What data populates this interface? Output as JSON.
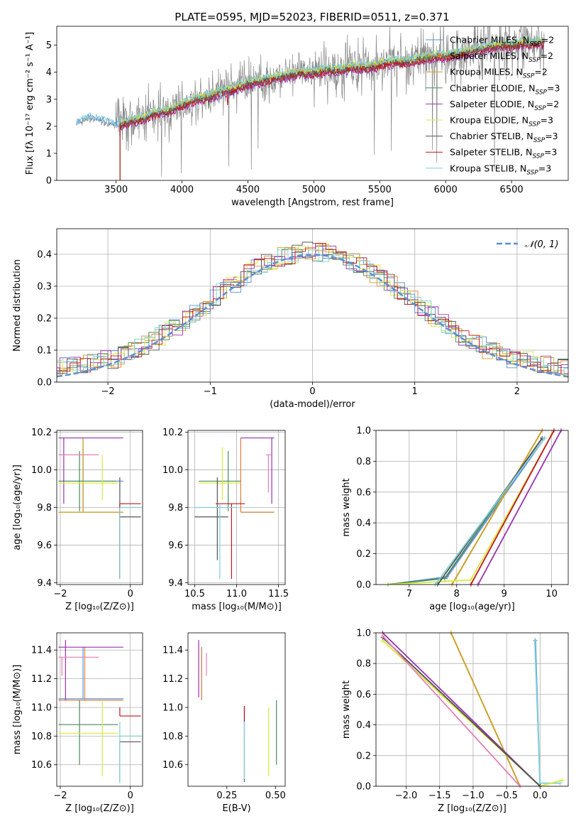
{
  "title": "PLATE=0595, MJD=52023, FIBERID=0511, z=0.371",
  "models": [
    {
      "name": "Chabrier MILES",
      "nssp": "2",
      "color": "#5b8fd6"
    },
    {
      "name": "Salpeter MILES",
      "nssp": "2",
      "color": "#e3853d"
    },
    {
      "name": "Kroupa MILES",
      "nssp": "2",
      "color": "#c9a227"
    },
    {
      "name": "Chabrier ELODIE",
      "nssp": "3",
      "color": "#4a8a5c"
    },
    {
      "name": "Salpeter ELODIE",
      "nssp": "2",
      "color": "#9b30b0"
    },
    {
      "name": "Kroupa ELODIE",
      "nssp": "3",
      "color": "#d8ea3c"
    },
    {
      "name": "Chabrier STELIB",
      "nssp": "3",
      "color": "#555555"
    },
    {
      "name": "Salpeter STELIB",
      "nssp": "3",
      "color": "#c0141c"
    },
    {
      "name": "Kroupa STELIB",
      "nssp": "3",
      "color": "#7fd0d8"
    }
  ],
  "chart_data": [
    {
      "id": "spectrum",
      "type": "line",
      "xlabel": "wavelength [Angstrom, rest frame]",
      "ylabel": "Flux [fλ 10⁻¹⁷ erg cm⁻² s⁻¹ A⁻¹]",
      "xlim": [
        3050,
        6930
      ],
      "ylim": [
        0,
        5.7
      ],
      "xticks": [
        3500,
        4000,
        4500,
        5000,
        5500,
        6000,
        6500
      ],
      "yticks": [
        0,
        1,
        2,
        3,
        4,
        5
      ],
      "data_color": "#888888",
      "data_continuum": [
        [
          3200,
          2.1
        ],
        [
          3300,
          2.3
        ],
        [
          3400,
          2.2
        ],
        [
          3500,
          2.0
        ],
        [
          3600,
          2.2
        ],
        [
          3700,
          2.3
        ],
        [
          3800,
          2.5
        ],
        [
          3900,
          2.6
        ],
        [
          4000,
          2.8
        ],
        [
          4100,
          3.0
        ],
        [
          4200,
          3.1
        ],
        [
          4300,
          3.3
        ],
        [
          4400,
          3.4
        ],
        [
          4500,
          3.6
        ],
        [
          4600,
          3.7
        ],
        [
          4700,
          3.8
        ],
        [
          4800,
          3.9
        ],
        [
          4900,
          4.0
        ],
        [
          5000,
          4.0
        ],
        [
          5100,
          4.1
        ],
        [
          5200,
          4.1
        ],
        [
          5300,
          4.2
        ],
        [
          5400,
          4.2
        ],
        [
          5500,
          4.3
        ],
        [
          5600,
          4.4
        ],
        [
          5700,
          4.4
        ],
        [
          5800,
          4.5
        ],
        [
          5900,
          4.6
        ],
        [
          6000,
          4.6
        ],
        [
          6100,
          4.7
        ],
        [
          6200,
          4.8
        ],
        [
          6300,
          4.9
        ],
        [
          6400,
          5.0
        ],
        [
          6500,
          5.0
        ],
        [
          6600,
          5.1
        ],
        [
          6700,
          5.1
        ],
        [
          6750,
          5.1
        ]
      ],
      "model_offsets": [
        0.05,
        0.0,
        0.02,
        -0.05,
        -0.15,
        0.08,
        -0.03,
        -0.1,
        0.1
      ]
    },
    {
      "id": "residuals",
      "type": "histogram",
      "xlabel": "(data-model)/error",
      "ylabel": "Normed distribution",
      "xlim": [
        -2.5,
        2.5
      ],
      "ylim": [
        0,
        0.48
      ],
      "xticks": [
        -2,
        -1,
        0,
        1,
        2
      ],
      "yticks": [
        0.0,
        0.1,
        0.2,
        0.3,
        0.4
      ],
      "legend": "𝒩(0, 1)",
      "reference_color": "#5b8fd6",
      "reference": "normal(0,1)"
    },
    {
      "id": "age_vs_Z",
      "type": "errorbar",
      "xlabel": "Z [log₁₀(Z/Z⊙)]",
      "ylabel": "age  [log₁₀(age/yr)]",
      "xlim": [
        -2.1,
        0.35
      ],
      "ylim": [
        9.39,
        10.21
      ],
      "xticks": [
        -2,
        0
      ],
      "yticks": [
        9.4,
        9.6,
        9.8,
        10.0,
        10.2
      ],
      "points": [
        {
          "m": 0,
          "x": -1.35,
          "y": 9.94,
          "xe": [
            -2.05,
            -0.2
          ],
          "ye": [
            9.78,
            10.12
          ]
        },
        {
          "m": 1,
          "x": -1.35,
          "y": 9.775,
          "xe": [
            -2.05,
            -0.2
          ],
          "ye": [
            9.775,
            10.17
          ]
        },
        {
          "m": 2,
          "x": -1.35,
          "y": 9.775,
          "xe": [
            -2.05,
            -0.2
          ],
          "ye": [
            9.775,
            10.17
          ]
        },
        {
          "m": 3,
          "x": -1.45,
          "y": 9.94,
          "xe": [
            -2.05,
            -0.4
          ],
          "ye": [
            9.78,
            10.1
          ]
        },
        {
          "m": 4,
          "x": -1.9,
          "y": 10.17,
          "xe": [
            -2.05,
            -0.2
          ],
          "ye": [
            9.82,
            10.17
          ]
        },
        {
          "m": 5,
          "x": -0.8,
          "y": 9.93,
          "xe": [
            -2.05,
            -0.35
          ],
          "ye": [
            9.84,
            10.08
          ]
        },
        {
          "m": 6,
          "x": -0.3,
          "y": 9.75,
          "xe": [
            -0.3,
            0.3
          ],
          "ye": [
            9.42,
            9.96
          ]
        },
        {
          "m": 7,
          "x": -0.3,
          "y": 9.82,
          "xe": [
            -0.3,
            0.3
          ],
          "ye": [
            9.42,
            9.82
          ]
        },
        {
          "m": 8,
          "x": -0.3,
          "y": 9.8,
          "xe": [
            -0.3,
            0.3
          ],
          "ye": [
            9.42,
            9.8
          ]
        },
        {
          "m": 4,
          "x": -1.9,
          "y": 10.08,
          "xe": [
            -2.05,
            -0.9
          ],
          "ye": [
            10.08,
            10.08
          ],
          "c": "#e67fb4"
        }
      ]
    },
    {
      "id": "age_vs_mass",
      "type": "errorbar",
      "xlabel": "mass [log₁₀(M/M⊙)]",
      "ylabel": "",
      "xlim": [
        10.42,
        11.58
      ],
      "ylim": [
        9.39,
        10.21
      ],
      "xticks": [
        10.5,
        11.0,
        11.5
      ],
      "yticks": [
        9.4,
        9.6,
        9.8,
        10.0,
        10.2
      ],
      "points": [
        {
          "m": 0,
          "x": 11.05,
          "y": 9.775,
          "xe": [
            11.05,
            11.45
          ],
          "ye": [
            9.775,
            10.17
          ]
        },
        {
          "m": 1,
          "x": 11.05,
          "y": 9.775,
          "xe": [
            11.05,
            11.45
          ],
          "ye": [
            9.775,
            10.17
          ]
        },
        {
          "m": 3,
          "x": 10.9,
          "y": 9.94,
          "xe": [
            10.55,
            11.05
          ],
          "ye": [
            9.78,
            10.1
          ]
        },
        {
          "m": 4,
          "x": 11.42,
          "y": 10.17,
          "xe": [
            11.05,
            11.45
          ],
          "ye": [
            9.82,
            10.17
          ]
        },
        {
          "m": 5,
          "x": 10.83,
          "y": 9.93,
          "xe": [
            10.55,
            11.05
          ],
          "ye": [
            9.84,
            10.12
          ]
        },
        {
          "m": 6,
          "x": 10.77,
          "y": 9.75,
          "xe": [
            10.5,
            10.9
          ],
          "ye": [
            9.52,
            9.96
          ]
        },
        {
          "m": 7,
          "x": 10.94,
          "y": 9.82,
          "xe": [
            10.75,
            11.1
          ],
          "ye": [
            9.42,
            9.82
          ]
        },
        {
          "m": 8,
          "x": 10.8,
          "y": 9.8,
          "xe": [
            10.5,
            11.0
          ],
          "ye": [
            9.42,
            9.82
          ]
        },
        {
          "m": 4,
          "x": 11.38,
          "y": 10.08,
          "xe": [
            11.35,
            11.42
          ],
          "ye": [
            9.88,
            10.08
          ],
          "c": "#e67fb4"
        }
      ]
    },
    {
      "id": "massweight_vs_age",
      "type": "line",
      "xlabel": "age  [log₁₀(age/yr)]",
      "ylabel": "mass weight",
      "xlim": [
        6.3,
        10.35
      ],
      "ylim": [
        0,
        1
      ],
      "xticks": [
        7,
        8,
        9,
        10
      ],
      "yticks": [
        0.0,
        0.2,
        0.4,
        0.6,
        0.8,
        1.0
      ],
      "series": [
        {
          "m": 0,
          "x": [
            6.55,
            7.8,
            9.85
          ],
          "y": [
            0.0,
            0.05,
            0.95
          ]
        },
        {
          "m": 1,
          "x": [
            7.9,
            9.8
          ],
          "y": [
            0.0,
            1.0
          ]
        },
        {
          "m": 2,
          "x": [
            7.9,
            9.8
          ],
          "y": [
            0.0,
            1.0
          ]
        },
        {
          "m": 3,
          "x": [
            6.55,
            7.75,
            9.8
          ],
          "y": [
            0.0,
            0.04,
            0.95
          ]
        },
        {
          "m": 4,
          "x": [
            8.45,
            10.2
          ],
          "y": [
            0.0,
            1.0
          ]
        },
        {
          "m": 5,
          "x": [
            6.55,
            8.3,
            10.0
          ],
          "y": [
            0.0,
            0.03,
            0.97
          ]
        },
        {
          "m": 6,
          "x": [
            7.6,
            9.8
          ],
          "y": [
            0.0,
            0.95
          ]
        },
        {
          "m": 7,
          "x": [
            8.3,
            10.05
          ],
          "y": [
            0.0,
            1.0
          ]
        },
        {
          "m": 8,
          "x": [
            7.55,
            9.85
          ],
          "y": [
            0.0,
            0.95
          ]
        }
      ]
    },
    {
      "id": "mass_vs_Z",
      "type": "errorbar",
      "xlabel": "Z [log₁₀(Z/Z⊙)]",
      "ylabel": "mass [log₁₀(M/M⊙)]",
      "xlim": [
        -2.1,
        0.35
      ],
      "ylim": [
        10.45,
        11.52
      ],
      "xticks": [
        -2,
        0
      ],
      "yticks": [
        10.6,
        10.8,
        11.0,
        11.2,
        11.4
      ],
      "points": [
        {
          "m": 0,
          "x": -1.35,
          "y": 11.06,
          "xe": [
            -2.05,
            -0.2
          ],
          "ye": [
            11.06,
            11.42
          ]
        },
        {
          "m": 1,
          "x": -1.3,
          "y": 11.05,
          "xe": [
            -2.05,
            -0.2
          ],
          "ye": [
            11.05,
            11.42
          ]
        },
        {
          "m": 3,
          "x": -1.45,
          "y": 10.88,
          "xe": [
            -2.05,
            -0.35
          ],
          "ye": [
            10.6,
            11.05
          ]
        },
        {
          "m": 4,
          "x": -1.85,
          "y": 11.42,
          "xe": [
            -2.05,
            -0.2
          ],
          "ye": [
            11.05,
            11.47
          ]
        },
        {
          "m": 5,
          "x": -0.8,
          "y": 10.82,
          "xe": [
            -2.05,
            -0.35
          ],
          "ye": [
            10.52,
            11.05
          ]
        },
        {
          "m": 6,
          "x": -0.3,
          "y": 10.76,
          "xe": [
            -0.3,
            0.3
          ],
          "ye": [
            10.48,
            10.76
          ]
        },
        {
          "m": 7,
          "x": -0.3,
          "y": 10.94,
          "xe": [
            -0.3,
            0.3
          ],
          "ye": [
            10.94,
            11.0
          ]
        },
        {
          "m": 8,
          "x": -0.3,
          "y": 10.8,
          "xe": [
            -0.3,
            0.3
          ],
          "ye": [
            10.47,
            10.9
          ]
        },
        {
          "m": 4,
          "x": -1.95,
          "y": 11.35,
          "xe": [
            -2.05,
            -0.9
          ],
          "ye": [
            11.22,
            11.35
          ],
          "c": "#e67fb4"
        }
      ]
    },
    {
      "id": "mass_vs_EBV",
      "type": "errorbar",
      "xlabel": "E(B-V)",
      "ylabel": "",
      "xlim": [
        0.05,
        0.55
      ],
      "ylim": [
        10.45,
        11.52
      ],
      "xticks": [
        0.25,
        0.5
      ],
      "yticks": [
        10.6,
        10.8,
        11.0,
        11.2,
        11.4
      ],
      "points": [
        {
          "m": 0,
          "x": 0.12,
          "y": 11.3,
          "xe": [
            0.12,
            0.12
          ],
          "ye": [
            11.05,
            11.42
          ]
        },
        {
          "m": 1,
          "x": 0.12,
          "y": 11.3,
          "xe": [
            0.12,
            0.12
          ],
          "ye": [
            11.05,
            11.42
          ]
        },
        {
          "m": 4,
          "x": 0.105,
          "y": 11.3,
          "xe": [
            0.105,
            0.105
          ],
          "ye": [
            11.07,
            11.47
          ]
        },
        {
          "m": 4,
          "x": 0.145,
          "y": 11.3,
          "xe": [
            0.145,
            0.145
          ],
          "ye": [
            11.22,
            11.38
          ],
          "c": "#e67fb4"
        },
        {
          "m": 3,
          "x": 0.505,
          "y": 10.88,
          "xe": [
            0.505,
            0.505
          ],
          "ye": [
            10.6,
            11.05
          ]
        },
        {
          "m": 5,
          "x": 0.465,
          "y": 10.82,
          "xe": [
            0.465,
            0.465
          ],
          "ye": [
            10.52,
            11.0
          ]
        },
        {
          "m": 6,
          "x": 0.34,
          "y": 10.76,
          "xe": [
            0.34,
            0.34
          ],
          "ye": [
            10.48,
            11.0
          ]
        },
        {
          "m": 7,
          "x": 0.34,
          "y": 10.94,
          "xe": [
            0.34,
            0.34
          ],
          "ye": [
            10.9,
            11.01
          ]
        },
        {
          "m": 8,
          "x": 0.34,
          "y": 10.8,
          "xe": [
            0.34,
            0.34
          ],
          "ye": [
            10.5,
            10.9
          ]
        }
      ]
    },
    {
      "id": "massweight_vs_Z",
      "type": "line",
      "xlabel": "Z [log₁₀(Z/Z⊙)]",
      "ylabel": "mass weight",
      "xlim": [
        -2.45,
        0.42
      ],
      "ylim": [
        0,
        1
      ],
      "xticks": [
        -2.0,
        -1.5,
        -1.0,
        -0.5,
        0.0
      ],
      "xtick_labels": [
        "−2.0",
        "−1.5",
        "−1.0",
        "−0.5",
        "0.0"
      ],
      "yticks": [
        0.0,
        0.2,
        0.4,
        0.6,
        0.8,
        1.0
      ],
      "series": [
        {
          "m": 0,
          "x": [
            -0.07,
            0.0
          ],
          "y": [
            0.95,
            0.0
          ]
        },
        {
          "m": 8,
          "x": [
            -0.08,
            0.0,
            0.3
          ],
          "y": [
            0.95,
            0.02,
            0.02
          ]
        },
        {
          "m": 1,
          "x": [
            -1.33,
            -0.3
          ],
          "y": [
            1.0,
            0.0
          ]
        },
        {
          "m": 2,
          "x": [
            -1.33,
            -0.3
          ],
          "y": [
            1.0,
            0.0
          ]
        },
        {
          "m": 4,
          "x": [
            -2.35,
            0.0
          ],
          "y": [
            1.0,
            0.0
          ]
        },
        {
          "m": 5,
          "x": [
            -2.35,
            0.0,
            0.33
          ],
          "y": [
            0.95,
            0.0,
            0.04
          ]
        },
        {
          "m": 3,
          "x": [
            -2.35,
            0.0
          ],
          "y": [
            0.97,
            0.0
          ]
        },
        {
          "m": 6,
          "x": [
            -2.35,
            0.0
          ],
          "y": [
            0.97,
            0.0
          ]
        },
        {
          "m": 4,
          "x": [
            -2.35,
            -0.3
          ],
          "y": [
            0.98,
            0.0
          ],
          "c": "#e67fb4"
        }
      ]
    }
  ]
}
